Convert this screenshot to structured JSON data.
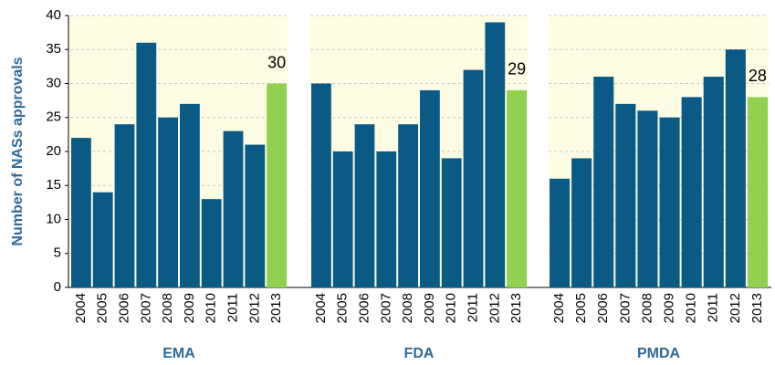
{
  "chart_data": {
    "type": "bar",
    "y_label": "Number of NASs approvals",
    "ylim": [
      0,
      40
    ],
    "yticks": [
      0,
      5,
      10,
      15,
      20,
      25,
      30,
      35,
      40
    ],
    "grid": true,
    "color": "#0b5a85",
    "highlight_color": "#92d050",
    "highlight_index": 9,
    "groups": [
      {
        "name": "EMA",
        "categories": [
          "2004",
          "2005",
          "2006",
          "2007",
          "2008",
          "2009",
          "2010",
          "2011",
          "2012",
          "2013"
        ],
        "values": [
          22,
          14,
          24,
          36,
          25,
          27,
          13,
          23,
          21,
          30
        ]
      },
      {
        "name": "FDA",
        "categories": [
          "2004",
          "2005",
          "2006",
          "2007",
          "2008",
          "2009",
          "2010",
          "2011",
          "2012",
          "2013"
        ],
        "values": [
          30,
          20,
          24,
          20,
          24,
          29,
          19,
          32,
          39,
          29
        ]
      },
      {
        "name": "PMDA",
        "categories": [
          "2004",
          "2005",
          "2006",
          "2007",
          "2008",
          "2009",
          "2010",
          "2011",
          "2012",
          "2013"
        ],
        "values": [
          16,
          19,
          31,
          27,
          26,
          25,
          28,
          31,
          35,
          28
        ]
      }
    ]
  }
}
